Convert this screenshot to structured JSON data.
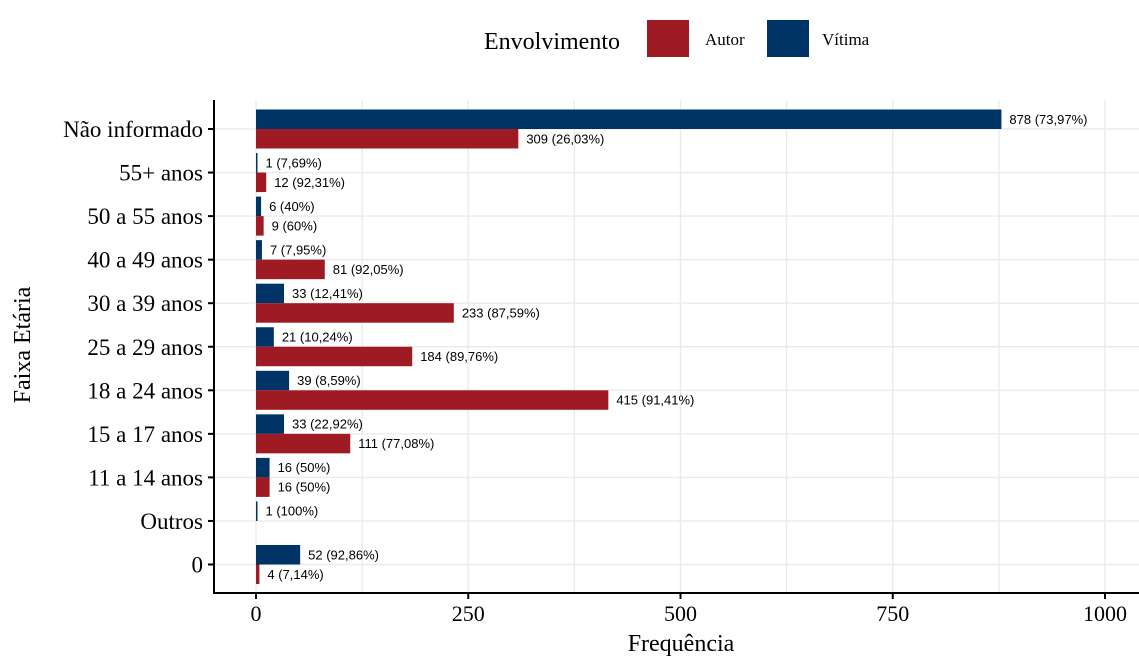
{
  "legend": {
    "title": "Envolvimento",
    "items": [
      {
        "label": "Autor",
        "color": "#9e1b24"
      },
      {
        "label": "Vítima",
        "color": "#003366"
      }
    ]
  },
  "chart_data": {
    "type": "bar",
    "orientation": "horizontal",
    "title": "",
    "xlabel": "Frequência",
    "ylabel": "Faixa Etária",
    "xlim": [
      0,
      1000
    ],
    "x_ticks": [
      0,
      250,
      500,
      750,
      1000
    ],
    "grid": true,
    "legend_position": "top",
    "categories": [
      "Não informado",
      "55+ anos",
      "50 a 55 anos",
      "40 a 49 anos",
      "30 a 39 anos",
      "25 a 29 anos",
      "18 a 24 anos",
      "15 a 17 anos",
      "11 a 14 anos",
      "Outros",
      "0"
    ],
    "series": [
      {
        "name": "Vítima",
        "color": "#003366",
        "values": [
          878,
          1,
          6,
          7,
          33,
          21,
          39,
          33,
          16,
          1,
          52
        ],
        "labels": [
          "878 (73,97%)",
          "1 (7,69%)",
          "6 (40%)",
          "7 (7,95%)",
          "33 (12,41%)",
          "21 (10,24%)",
          "39 (8,59%)",
          "33 (22,92%)",
          "16 (50%)",
          "1 (100%)",
          "52 (92,86%)"
        ]
      },
      {
        "name": "Autor",
        "color": "#9e1b24",
        "values": [
          309,
          12,
          9,
          81,
          233,
          184,
          415,
          111,
          16,
          null,
          4
        ],
        "labels": [
          "309 (26,03%)",
          "12 (92,31%)",
          "9 (60%)",
          "81 (92,05%)",
          "233 (87,59%)",
          "184 (89,76%)",
          "415 (91,41%)",
          "111 (77,08%)",
          "16 (50%)",
          "",
          "4 (7,14%)"
        ]
      }
    ]
  }
}
